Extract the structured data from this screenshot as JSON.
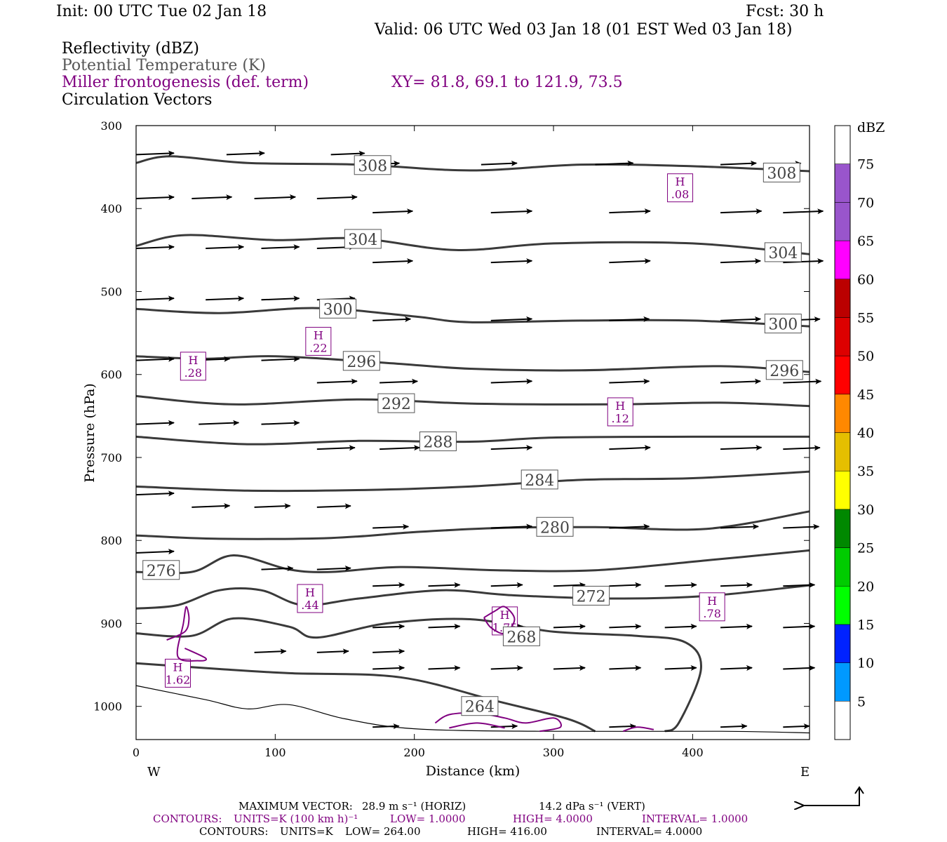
{
  "header": {
    "init": "Init: 00 UTC Tue 02 Jan 18",
    "fcst": "Fcst:   30 h",
    "valid": "Valid: 06 UTC Wed 03 Jan 18 (01 EST Wed 03 Jan 18)",
    "fields": [
      "Reflectivity (dBZ)",
      "Potential Temperature (K)",
      "Miller frontogenesis (def. term)",
      "Circulation Vectors"
    ],
    "xy": "XY=  81.8, 69.1 to 121.9, 73.5"
  },
  "footer": {
    "max_vector_label": "MAXIMUM VECTOR:",
    "max_vector_horiz": "28.9 m s⁻¹ (HORIZ)",
    "max_vector_vert": "14.2 dPa s⁻¹ (VERT)",
    "contours_fronto": {
      "label": "CONTOURS:",
      "units": "UNITS=K (100 km h)⁻¹",
      "low": "LOW=   1.0000",
      "high": "HIGH=   4.0000",
      "interval": "INTERVAL=    1.0000"
    },
    "contours_theta": {
      "label": "CONTOURS:",
      "units": "UNITS=K",
      "low": "LOW=   264.00",
      "high": "HIGH=   416.00",
      "interval": "INTERVAL=    4.0000"
    }
  },
  "chart_data": {
    "type": "cross-section",
    "xlabel": "Distance (km)",
    "ylabel": "Pressure (hPa)",
    "xlim": [
      0,
      484
    ],
    "ylim": [
      300,
      1040
    ],
    "x_ticks": [
      0,
      100,
      200,
      300,
      400
    ],
    "y_ticks": [
      300,
      400,
      500,
      600,
      700,
      800,
      900,
      1000
    ],
    "x_end_labels": {
      "left": "W",
      "right": "E"
    },
    "isentropes": [
      {
        "theta": "308",
        "points": [
          [
            0,
            345
          ],
          [
            25,
            337
          ],
          [
            80,
            345
          ],
          [
            160,
            347
          ],
          [
            240,
            354
          ],
          [
            320,
            347
          ],
          [
            400,
            349
          ],
          [
            484,
            355
          ]
        ],
        "labels": [
          [
            170,
            348
          ],
          [
            464,
            357
          ]
        ]
      },
      {
        "theta": "304",
        "points": [
          [
            0,
            445
          ],
          [
            35,
            432
          ],
          [
            100,
            438
          ],
          [
            160,
            436
          ],
          [
            230,
            450
          ],
          [
            300,
            442
          ],
          [
            400,
            442
          ],
          [
            484,
            455
          ]
        ],
        "labels": [
          [
            163,
            437
          ],
          [
            465,
            453
          ]
        ]
      },
      {
        "theta": "300",
        "points": [
          [
            0,
            521
          ],
          [
            60,
            526
          ],
          [
            130,
            520
          ],
          [
            200,
            530
          ],
          [
            240,
            537
          ],
          [
            320,
            535
          ],
          [
            400,
            535
          ],
          [
            484,
            542
          ]
        ],
        "labels": [
          [
            145,
            521
          ],
          [
            465,
            539
          ]
        ]
      },
      {
        "theta": "296",
        "points": [
          [
            0,
            578
          ],
          [
            50,
            581
          ],
          [
            100,
            578
          ],
          [
            180,
            586
          ],
          [
            240,
            593
          ],
          [
            320,
            595
          ],
          [
            420,
            590
          ],
          [
            484,
            597
          ]
        ],
        "labels": [
          [
            162,
            584
          ],
          [
            466,
            595
          ]
        ]
      },
      {
        "theta": "292",
        "points": [
          [
            0,
            626
          ],
          [
            70,
            636
          ],
          [
            160,
            630
          ],
          [
            240,
            635
          ],
          [
            340,
            636
          ],
          [
            420,
            634
          ],
          [
            484,
            638
          ]
        ],
        "labels": [
          [
            187,
            635
          ]
        ]
      },
      {
        "theta": "288",
        "points": [
          [
            0,
            675
          ],
          [
            80,
            684
          ],
          [
            160,
            680
          ],
          [
            240,
            681
          ],
          [
            300,
            676
          ],
          [
            400,
            675
          ],
          [
            484,
            675
          ]
        ],
        "labels": [
          [
            217,
            681
          ]
        ]
      },
      {
        "theta": "284",
        "points": [
          [
            0,
            735
          ],
          [
            80,
            740
          ],
          [
            170,
            739
          ],
          [
            240,
            735
          ],
          [
            320,
            727
          ],
          [
            400,
            725
          ],
          [
            484,
            717
          ]
        ],
        "labels": [
          [
            290,
            727
          ]
        ]
      },
      {
        "theta": "280",
        "points": [
          [
            0,
            794
          ],
          [
            60,
            798
          ],
          [
            140,
            797
          ],
          [
            200,
            790
          ],
          [
            260,
            785
          ],
          [
            330,
            784
          ],
          [
            410,
            786
          ],
          [
            484,
            765
          ]
        ],
        "labels": [
          [
            301,
            784
          ]
        ]
      },
      {
        "theta": "276",
        "points": [
          [
            0,
            838
          ],
          [
            40,
            838
          ],
          [
            70,
            818
          ],
          [
            110,
            835
          ],
          [
            140,
            838
          ],
          [
            190,
            832
          ],
          [
            260,
            836
          ],
          [
            330,
            836
          ],
          [
            410,
            824
          ],
          [
            484,
            812
          ]
        ],
        "labels": [
          [
            18,
            836
          ]
        ]
      },
      {
        "theta": "272",
        "points": [
          [
            0,
            882
          ],
          [
            30,
            878
          ],
          [
            60,
            860
          ],
          [
            90,
            860
          ],
          [
            120,
            878
          ],
          [
            160,
            870
          ],
          [
            220,
            860
          ],
          [
            270,
            866
          ],
          [
            340,
            870
          ],
          [
            410,
            867
          ],
          [
            484,
            854
          ]
        ],
        "labels": [
          [
            327,
            867
          ]
        ]
      },
      {
        "theta": "268",
        "points": [
          [
            0,
            912
          ],
          [
            40,
            915
          ],
          [
            70,
            894
          ],
          [
            110,
            904
          ],
          [
            130,
            917
          ],
          [
            180,
            900
          ],
          [
            240,
            895
          ],
          [
            300,
            910
          ],
          [
            360,
            915
          ],
          [
            395,
            923
          ],
          [
            406,
            955
          ],
          [
            390,
            1020
          ],
          [
            380,
            1030
          ]
        ],
        "labels": [
          [
            277,
            916
          ]
        ]
      },
      {
        "theta": "",
        "points": [
          [
            0,
            948
          ],
          [
            60,
            955
          ],
          [
            110,
            960
          ],
          [
            190,
            965
          ],
          [
            260,
            994
          ],
          [
            310,
            1015
          ],
          [
            330,
            1030
          ]
        ],
        "labels": []
      },
      {
        "theta": "264",
        "points": [
          [
            0,
            975
          ],
          [
            50,
            992
          ],
          [
            80,
            1003
          ],
          [
            110,
            998
          ],
          [
            150,
            1015
          ],
          [
            200,
            1027
          ],
          [
            290,
            1030
          ],
          [
            420,
            1030
          ],
          [
            484,
            1032
          ]
        ],
        "thin": true,
        "labels": [
          [
            247,
            1000
          ]
        ]
      }
    ],
    "frontogenesis_maxima": [
      {
        "label": "H",
        "value": ".08",
        "x": 391,
        "p": 375
      },
      {
        "label": "H",
        "value": ".22",
        "x": 131,
        "p": 560
      },
      {
        "label": "H",
        "value": ".28",
        "x": 41,
        "p": 590
      },
      {
        "label": "H",
        "value": ".12",
        "x": 348,
        "p": 645
      },
      {
        "label": "H",
        "value": ".44",
        "x": 125,
        "p": 870
      },
      {
        "label": "H",
        "value": ".78",
        "x": 414,
        "p": 880
      },
      {
        "label": "H",
        "value": "1.75",
        "x": 265,
        "p": 897
      },
      {
        "label": "H",
        "value": "1.62",
        "x": 30,
        "p": 960
      }
    ],
    "reflectivity_colorbar": {
      "unit_label": "dBZ",
      "levels": [
        "5",
        "10",
        "15",
        "20",
        "25",
        "30",
        "35",
        "40",
        "45",
        "50",
        "55",
        "60",
        "65",
        "70",
        "75"
      ],
      "colors": [
        "#00e5e5",
        "#0099ff",
        "#0022ff",
        "#00ff00",
        "#00cc00",
        "#008800",
        "#ffff00",
        "#e5bf00",
        "#ff8800",
        "#ff0000",
        "#dd0000",
        "#bb0000",
        "#ff00ff",
        "#9955cc",
        "#ffffff"
      ]
    },
    "vectors": {
      "rows": [
        {
          "p": 335,
          "u": [
            [
              0,
              3.6
            ],
            [
              65,
              3.6
            ],
            [
              140,
              3.2
            ]
          ]
        },
        {
          "p": 347,
          "u": [
            [
              165,
              3.2
            ],
            [
              248,
              3.4
            ],
            [
              330,
              3.6
            ],
            [
              420,
              3.4
            ],
            [
              455,
              3
            ]
          ]
        },
        {
          "p": 388,
          "u": [
            [
              0,
              3.6
            ],
            [
              40,
              3.8
            ],
            [
              85,
              3.9
            ],
            [
              130,
              3.8
            ]
          ]
        },
        {
          "p": 405,
          "u": [
            [
              170,
              3.8
            ],
            [
              255,
              3.9
            ],
            [
              340,
              3.9
            ],
            [
              420,
              3.9
            ],
            [
              465,
              3.8
            ]
          ]
        },
        {
          "p": 448,
          "u": [
            [
              0,
              3.6
            ],
            [
              50,
              3.6
            ],
            [
              90,
              3.6
            ],
            [
              130,
              3.6
            ]
          ]
        },
        {
          "p": 465,
          "u": [
            [
              170,
              3.8
            ],
            [
              255,
              3.9
            ],
            [
              340,
              3.9
            ],
            [
              420,
              3.8
            ],
            [
              465,
              3.8
            ]
          ]
        },
        {
          "p": 510,
          "u": [
            [
              0,
              3.6
            ],
            [
              50,
              3.6
            ],
            [
              90,
              3.6
            ],
            [
              130,
              3.6
            ]
          ]
        },
        {
          "p": 535,
          "u": [
            [
              170,
              3.6
            ],
            [
              255,
              3.9
            ],
            [
              340,
              3.8
            ],
            [
              420,
              3.8
            ],
            [
              465,
              3.5
            ]
          ]
        },
        {
          "p": 583,
          "u": [
            [
              0,
              3.6
            ],
            [
              40,
              3.6
            ],
            [
              90,
              3.6
            ]
          ]
        },
        {
          "p": 610,
          "u": [
            [
              130,
              3.8
            ],
            [
              175,
              3.6
            ],
            [
              255,
              3.9
            ],
            [
              340,
              3.8
            ],
            [
              420,
              3.8
            ],
            [
              465,
              3.6
            ]
          ]
        },
        {
          "p": 660,
          "u": [
            [
              0,
              3.6
            ],
            [
              45,
              3.8
            ],
            [
              90,
              3.6
            ]
          ]
        },
        {
          "p": 690,
          "u": [
            [
              130,
              3.6
            ],
            [
              175,
              3.8
            ],
            [
              255,
              3.9
            ],
            [
              340,
              3.9
            ],
            [
              420,
              3.9
            ],
            [
              465,
              3.5
            ]
          ]
        },
        {
          "p": 745,
          "u": [
            [
              0,
              3.6
            ]
          ]
        },
        {
          "p": 760,
          "u": [
            [
              40,
              3.6
            ],
            [
              85,
              3.4
            ],
            [
              130,
              3.2
            ]
          ]
        },
        {
          "p": 785,
          "u": [
            [
              170,
              3.4
            ],
            [
              255,
              3.9
            ],
            [
              340,
              3.8
            ],
            [
              420,
              3.6
            ],
            [
              465,
              3.4
            ]
          ]
        },
        {
          "p": 815,
          "u": [
            [
              0,
              3.6
            ]
          ]
        },
        {
          "p": 835,
          "u": [
            [
              90,
              3
            ],
            [
              130,
              3.2
            ]
          ]
        },
        {
          "p": 855,
          "u": [
            [
              170,
              3
            ],
            [
              210,
              3
            ],
            [
              255,
              3
            ],
            [
              300,
              3
            ],
            [
              340,
              3
            ],
            [
              380,
              3
            ],
            [
              420,
              3
            ],
            [
              465,
              3
            ]
          ]
        },
        {
          "p": 905,
          "u": [
            [
              170,
              3
            ],
            [
              210,
              3
            ],
            [
              255,
              3
            ],
            [
              300,
              3
            ],
            [
              340,
              3
            ],
            [
              380,
              3
            ],
            [
              420,
              3
            ],
            [
              465,
              3
            ]
          ]
        },
        {
          "p": 935,
          "u": [
            [
              85,
              3
            ],
            [
              130,
              3
            ],
            [
              170,
              3
            ]
          ]
        },
        {
          "p": 955,
          "u": [
            [
              170,
              3
            ],
            [
              210,
              3
            ],
            [
              255,
              3
            ],
            [
              300,
              3
            ],
            [
              340,
              3
            ],
            [
              380,
              3
            ],
            [
              420,
              3
            ],
            [
              465,
              3
            ]
          ]
        },
        {
          "p": 1025,
          "u": [
            [
              170,
              2.5
            ],
            [
              255,
              2.5
            ],
            [
              340,
              2.5
            ],
            [
              420,
              2.5
            ],
            [
              465,
              2.5
            ]
          ]
        }
      ]
    }
  }
}
